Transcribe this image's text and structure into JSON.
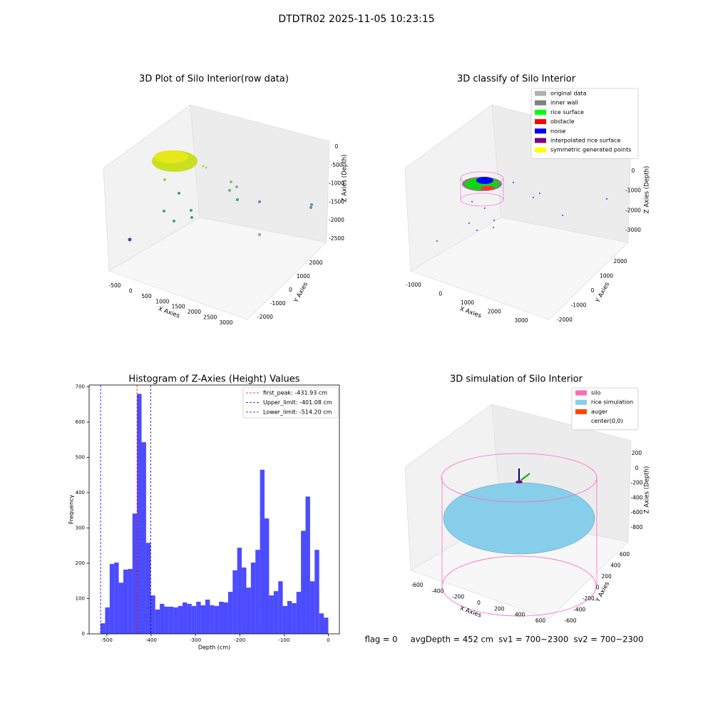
{
  "title": "DTDTR02 2025-11-05 10:23:15",
  "footer_text": "flag = 0     avgDepth = 452 cm  sv1 = 700~2300  sv2 = 700~2300",
  "chart_data": [
    {
      "type": "scatter3d",
      "title": "3D Plot of Silo Interior(row data)",
      "xlabel": "X Axies",
      "ylabel": "Y Axies",
      "zlabel": "Z Axies (Depth)",
      "xticks": [
        -500,
        0,
        500,
        1000,
        1500,
        2000,
        2500,
        3000
      ],
      "yticks": [
        2000,
        1000,
        0,
        -1000,
        -2000
      ],
      "zticks": [
        0,
        -500,
        -1000,
        -1500,
        -2000,
        -2500
      ]
    },
    {
      "type": "classify3d",
      "title": "3D classify of Silo Interior",
      "xticks": [
        -1000,
        0,
        1000,
        2000,
        3000
      ],
      "yticks": [
        2000,
        1000,
        0,
        -1000,
        -2000
      ],
      "zticks": [
        0,
        -1000,
        -2000,
        -3000
      ],
      "xlabel": "X Axies",
      "ylabel": "Y Axies",
      "zlabel": "Z Axies (Depth)",
      "legend": [
        {
          "name": "original data",
          "color": "#b0b0b0"
        },
        {
          "name": "inner wall",
          "color": "#808080"
        },
        {
          "name": "rice surface",
          "color": "#00ff00"
        },
        {
          "name": "obstacle",
          "color": "#ff0000"
        },
        {
          "name": "noise",
          "color": "#0000ff"
        },
        {
          "name": "interpolated rice surface",
          "color": "#800080"
        },
        {
          "name": "symmetric generated points",
          "color": "#ffff00"
        }
      ]
    },
    {
      "type": "histogram",
      "title": "Histogram of Z-Axies (Height) Values",
      "xlabel": "Depth (cm)",
      "ylabel": "Frequency",
      "color": "#0000ff",
      "bins": [
        -514.2,
        -503.92,
        -493.63,
        -483.35,
        -473.06,
        -462.78,
        -452.5,
        -442.21,
        -431.93,
        -421.64,
        -411.36,
        -401.08,
        -390.79,
        -380.51,
        -370.22,
        -359.94,
        -349.66,
        -339.37,
        -329.09,
        -318.8,
        -308.52,
        -298.24,
        -287.95,
        -277.67,
        -267.38,
        -257.1,
        -246.82,
        -236.53,
        -226.25,
        -215.96,
        -205.68,
        -195.4,
        -185.11,
        -174.83,
        -164.54,
        -154.26,
        -143.98,
        -133.69,
        -123.41,
        -113.12,
        -102.84,
        -92.56,
        -82.27,
        -71.99,
        -61.7,
        -51.42,
        -41.14,
        -30.85,
        -20.57,
        -10.28,
        0
      ],
      "values": [
        30,
        75,
        198,
        202,
        145,
        182,
        184,
        341,
        680,
        543,
        258,
        109,
        69,
        85,
        77,
        77,
        75,
        79,
        89,
        85,
        79,
        91,
        81,
        97,
        81,
        79,
        91,
        89,
        119,
        180,
        244,
        188,
        131,
        202,
        238,
        465,
        327,
        109,
        121,
        149,
        79,
        93,
        87,
        119,
        292,
        389,
        149,
        238,
        58,
        46
      ],
      "lines": [
        {
          "name": "first_peak: -431.93 cm",
          "value": -431.93,
          "color": "#ff0000"
        },
        {
          "name": "Upper_limit: -401.08 cm",
          "value": -401.08,
          "color": "#00008b"
        },
        {
          "name": "Lower_limit: -514.20 cm",
          "value": -514.2,
          "color": "#0000ff"
        }
      ],
      "xlim": [
        -540,
        25
      ],
      "ylim": [
        0,
        705
      ],
      "xticks": [
        -500,
        -400,
        -300,
        -200,
        -100,
        0
      ],
      "yticks": [
        0,
        100,
        200,
        300,
        400,
        500,
        600,
        700
      ]
    },
    {
      "type": "simulation3d",
      "title": "3D simulation of Silo Interior",
      "xlabel": "X Axies",
      "ylabel": "Y Axies",
      "zlabel": "Z Axies (Depth)",
      "xticks": [
        -600,
        -400,
        -200,
        0,
        200,
        400,
        600
      ],
      "yticks": [
        600,
        400,
        200,
        0,
        -200,
        -400,
        -600
      ],
      "zticks": [
        200,
        0,
        -200,
        -400,
        -600,
        -800
      ],
      "legend": [
        {
          "name": "silo",
          "color": "#ff69b4"
        },
        {
          "name": "rice simulation",
          "color": "#87ceeb"
        },
        {
          "name": "auger",
          "color": "#ff4500"
        },
        {
          "name": "center(0,0)",
          "color": "#ffffff"
        }
      ]
    }
  ]
}
